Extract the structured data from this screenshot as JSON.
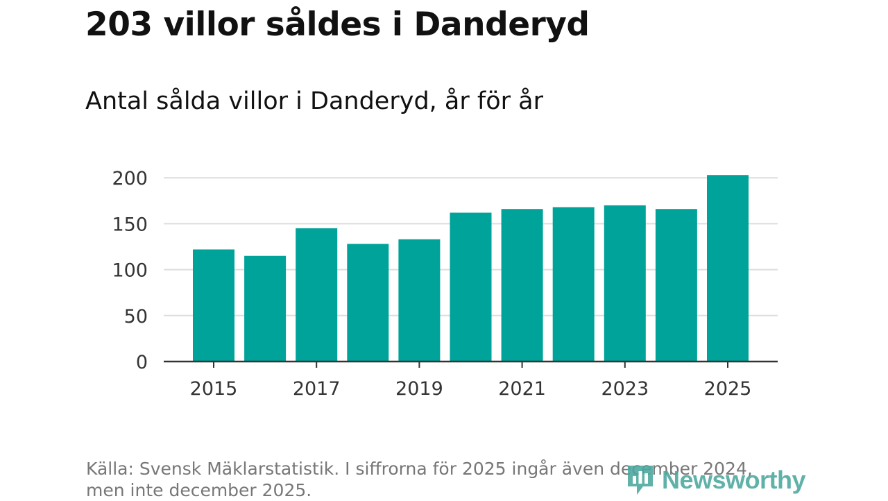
{
  "header": {
    "title": "203 villor såldes i Danderyd",
    "subtitle": "Antal sålda villor i Danderyd, år för år"
  },
  "chart_data": {
    "type": "bar",
    "title": "203 villor såldes i Danderyd",
    "subtitle": "Antal sålda villor i Danderyd, år för år",
    "categories": [
      "2015",
      "2016",
      "2017",
      "2018",
      "2019",
      "2020",
      "2021",
      "2022",
      "2023",
      "2024",
      "2025"
    ],
    "values": [
      122,
      115,
      145,
      128,
      133,
      162,
      166,
      168,
      170,
      166,
      203
    ],
    "xticks": [
      "2015",
      "2017",
      "2019",
      "2021",
      "2023",
      "2025"
    ],
    "yticks": [
      0,
      50,
      100,
      150,
      200
    ],
    "ylim": [
      0,
      210
    ],
    "xlabel": "",
    "ylabel": "",
    "grid": true,
    "bar_color": "#00a39a"
  },
  "footer": {
    "source": "Källa: Svensk Mäklarstatistik. I siffrorna för 2025 ingår även december 2024, men inte december 2025.",
    "logo_text": "Newsworthy",
    "logo_icon": "bar-chart-icon"
  }
}
